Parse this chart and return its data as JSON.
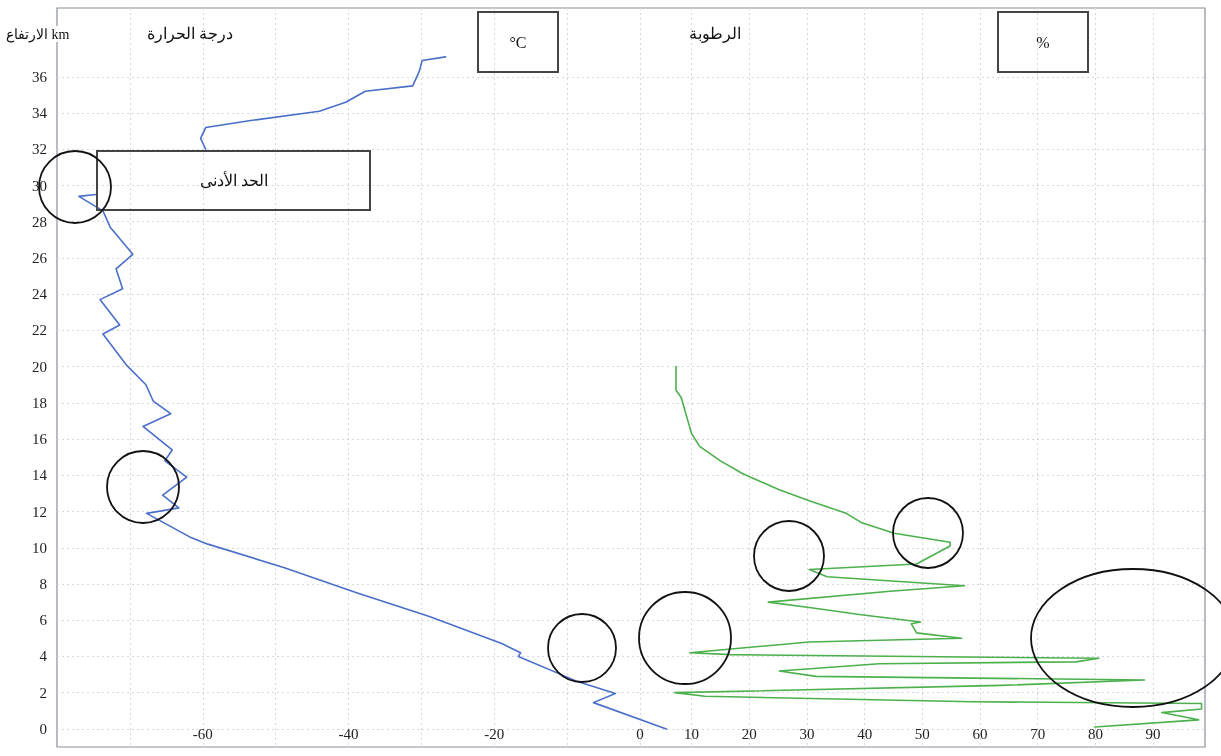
{
  "chart_data": {
    "type": "line",
    "xlabel": "درجة الحرارة",
    "x2label": "الرطوبة",
    "ylabel": "الارتفاع km",
    "annotations": [
      "°C",
      "%",
      "الحد الأدنى"
    ],
    "xlim": [
      -80,
      77.5
    ],
    "xticks": [
      {
        "value": -70,
        "label": null
      },
      -60,
      {
        "value": -50,
        "label": null
      },
      -40,
      {
        "value": -30,
        "label": null
      },
      -20,
      {
        "value": -10,
        "label": null
      },
      0
    ],
    "x2lim": [
      -100,
      99
    ],
    "x2ticks": [
      10,
      20,
      30,
      40,
      50,
      60,
      70,
      80,
      90
    ],
    "ylim": [
      -1,
      39.8
    ],
    "yticks": [
      0,
      2,
      4,
      6,
      8,
      10,
      12,
      14,
      16,
      18,
      20,
      22,
      24,
      26,
      28,
      30,
      32,
      34,
      36
    ],
    "grid": true,
    "marker": "none",
    "series": [
      {
        "color": "#4a6fc9",
        "x": [
          -26.7,
          -29.9,
          -30.3,
          -31.2,
          -37.7,
          -40.4,
          -44,
          -53.2,
          -59.6,
          -60.3,
          -59.6,
          null,
          -74.7,
          -77,
          -73.7,
          -72.7,
          -69.6,
          -71.9,
          -71,
          -74.1,
          -71.4,
          -73.7,
          -70.5,
          -67.8,
          -66.8,
          -64.4,
          -68.2,
          -64.2,
          -65.2,
          -62.2,
          -65.5,
          -63.3,
          -67.7,
          -61.8,
          -59.3,
          -48.8,
          -38.8,
          -28.9,
          -18.9,
          -16.4,
          -16.7,
          -8.8,
          -3.4,
          -6.4,
          3.6
        ],
        "values": [
          37.1,
          36.9,
          36.3,
          35.5,
          35.2,
          34.6,
          34.1,
          33.6,
          33.2,
          32.6,
          32.0,
          null,
          29.5,
          29.4,
          28.6,
          27.7,
          26.2,
          25.4,
          24.3,
          23.7,
          22.3,
          21.8,
          20.1,
          19.0,
          18.1,
          17.4,
          16.7,
          15.4,
          14.8,
          13.9,
          12.9,
          12.2,
          11.9,
          10.6,
          10.2,
          8.9,
          7.5,
          6.2,
          4.7,
          4.2,
          4.0,
          2.65,
          1.95,
          1.45,
          0
        ]
      },
      {
        "axis": "x2",
        "color": "#4cb04c",
        "x": [
          7.3,
          7.3,
          8.2,
          10,
          11.4,
          15,
          18.8,
          25.2,
          30.4,
          36.8,
          39.4,
          45.1,
          54.8,
          54.8,
          49,
          30.4,
          33.5,
          57.3,
          44.4,
          23.3,
          30.4,
          39.4,
          49.7,
          48.1,
          49,
          56.8,
          30.4,
          9.7,
          16.8,
          80.6,
          76.6,
          42.5,
          25.2,
          31.6,
          88.5,
          63.7,
          7.1,
          12.3,
          58.7,
          98.4,
          98.4,
          91.5,
          97.9,
          79.9
        ],
        "values": [
          20,
          18.7,
          18.3,
          16.3,
          15.6,
          14.8,
          14.1,
          13.2,
          12.6,
          11.9,
          11.4,
          10.8,
          10.3,
          10.1,
          9.1,
          8.8,
          8.4,
          7.9,
          7.6,
          7.0,
          6.7,
          6.3,
          5.9,
          5.8,
          5.3,
          5.0,
          4.8,
          4.2,
          4.1,
          3.9,
          3.7,
          3.6,
          3.2,
          2.9,
          2.7,
          2.4,
          2.0,
          1.8,
          1.5,
          1.4,
          1.1,
          0.9,
          0.5,
          0.1
        ]
      }
    ]
  }
}
